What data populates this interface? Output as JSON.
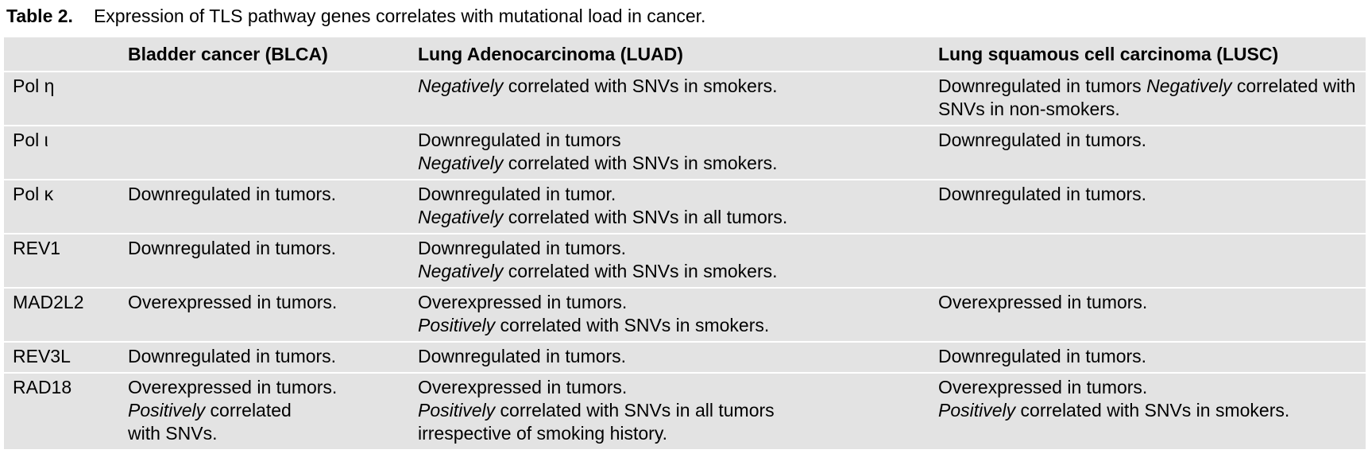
{
  "caption": {
    "label": "Table 2.",
    "text": "Expression of TLS pathway genes correlates with mutational load in cancer."
  },
  "headers": [
    "",
    "Bladder cancer (BLCA)",
    "Lung Adenocarcinoma (LUAD)",
    "Lung squamous cell carcinoma (LUSC)"
  ],
  "rows": [
    {
      "gene": "Pol η",
      "blca": [],
      "luad": [
        [
          {
            "t": "Negatively",
            "i": true
          },
          {
            "t": " correlated with SNVs in smokers."
          }
        ]
      ],
      "lusc": [
        [
          {
            "t": "Downregulated in tumors "
          },
          {
            "t": "Negatively",
            "i": true
          },
          {
            "t": " correlated with SNVs in non-smokers."
          }
        ]
      ]
    },
    {
      "gene": "Pol ι",
      "blca": [],
      "luad": [
        [
          {
            "t": "Downregulated in tumors"
          }
        ],
        [
          {
            "t": "Negatively",
            "i": true
          },
          {
            "t": " correlated with SNVs in smokers."
          }
        ]
      ],
      "lusc": [
        [
          {
            "t": "Downregulated in tumors."
          }
        ]
      ]
    },
    {
      "gene": "Pol κ",
      "blca": [
        [
          {
            "t": "Downregulated in tumors."
          }
        ]
      ],
      "luad": [
        [
          {
            "t": "Downregulated in tumor."
          }
        ],
        [
          {
            "t": "Negatively",
            "i": true
          },
          {
            "t": " correlated with SNVs in all tumors."
          }
        ]
      ],
      "lusc": [
        [
          {
            "t": "Downregulated in tumors."
          }
        ]
      ]
    },
    {
      "gene": "REV1",
      "blca": [
        [
          {
            "t": "Downregulated in tumors."
          }
        ]
      ],
      "luad": [
        [
          {
            "t": "Downregulated in tumors."
          }
        ],
        [
          {
            "t": "Negatively",
            "i": true
          },
          {
            "t": " correlated with SNVs in smokers."
          }
        ]
      ],
      "lusc": []
    },
    {
      "gene": "MAD2L2",
      "blca": [
        [
          {
            "t": "Overexpressed in tumors."
          }
        ]
      ],
      "luad": [
        [
          {
            "t": "Overexpressed in tumors."
          }
        ],
        [
          {
            "t": "Positively",
            "i": true
          },
          {
            "t": " correlated with SNVs in smokers."
          }
        ]
      ],
      "lusc": [
        [
          {
            "t": "Overexpressed in tumors."
          }
        ]
      ]
    },
    {
      "gene": "REV3L",
      "blca": [
        [
          {
            "t": "Downregulated in tumors."
          }
        ]
      ],
      "luad": [
        [
          {
            "t": "Downregulated in tumors."
          }
        ]
      ],
      "lusc": [
        [
          {
            "t": "Downregulated in tumors."
          }
        ]
      ]
    },
    {
      "gene": "RAD18",
      "blca": [
        [
          {
            "t": "Overexpressed in tumors."
          }
        ],
        [
          {
            "t": "Positively",
            "i": true
          },
          {
            "t": " correlated"
          }
        ],
        [
          {
            "t": "with SNVs."
          }
        ]
      ],
      "luad": [
        [
          {
            "t": "Overexpressed in tumors."
          }
        ],
        [
          {
            "t": "Positively",
            "i": true
          },
          {
            "t": " correlated with SNVs in all tumors"
          }
        ],
        [
          {
            "t": "irrespective of smoking history."
          }
        ]
      ],
      "lusc": [
        [
          {
            "t": "Overexpressed in tumors."
          }
        ],
        [
          {
            "t": "Positively",
            "i": true
          },
          {
            "t": " correlated with SNVs in smokers."
          }
        ]
      ]
    }
  ]
}
